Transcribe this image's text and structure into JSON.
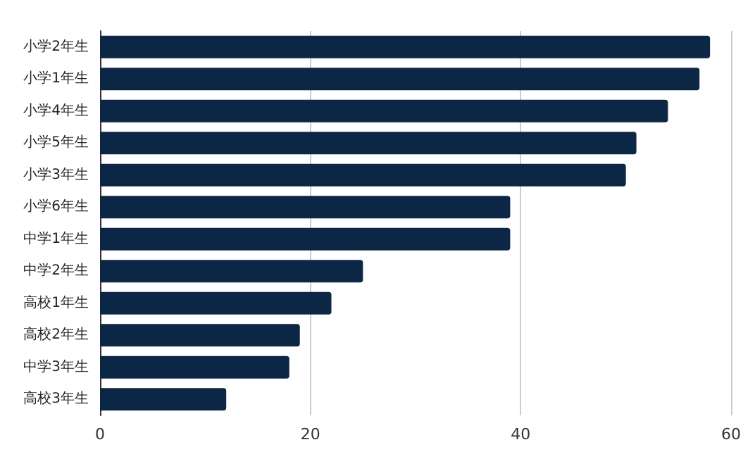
{
  "chart_data": {
    "type": "bar",
    "orientation": "horizontal",
    "categories": [
      "小学2年生",
      "小学1年生",
      "小学4年生",
      "小学5年生",
      "小学3年生",
      "小学6年生",
      "中学1年生",
      "中学2年生",
      "高校1年生",
      "高校2年生",
      "中学3年生",
      "高校3年生"
    ],
    "values": [
      58,
      57,
      54,
      51,
      50,
      39,
      39,
      25,
      22,
      19,
      18,
      12
    ],
    "color": "#0c2746",
    "xlim": [
      0,
      60
    ],
    "xticks": [
      0,
      20,
      40,
      60
    ],
    "grid": "x"
  }
}
